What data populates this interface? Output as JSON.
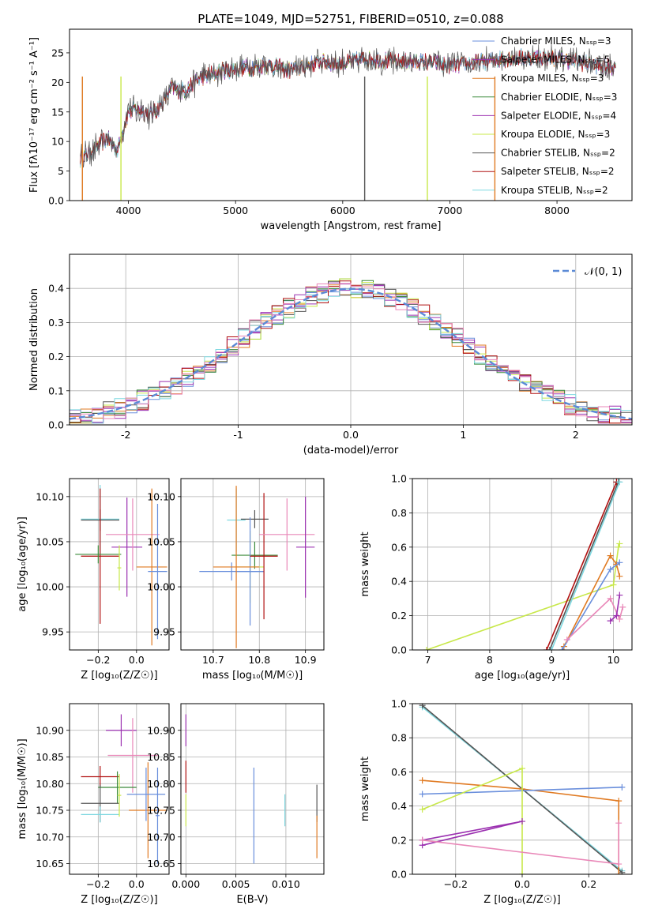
{
  "figure": {
    "title": "PLATE=1049, MJD=52751, FIBERID=0510, z=0.088"
  },
  "models": [
    {
      "label": "Chabrier MILES, N$_{SSP}$=3",
      "color": "#6a8fdc"
    },
    {
      "label": "Salpeter MILES, N$_{SSP}$=5",
      "color": "#9b30b0"
    },
    {
      "label": "Kroupa MILES, N$_{SSP}$=3",
      "color": "#e07a22"
    },
    {
      "label": "Chabrier ELODIE, N$_{SSP}$=3",
      "color": "#3a8a3a"
    },
    {
      "label": "Salpeter ELODIE, N$_{SSP}$=4",
      "color": "#9b30b0"
    },
    {
      "label": "Kroupa ELODIE, N$_{SSP}$=3",
      "color": "#c8e84a"
    },
    {
      "label": "Chabrier STELIB, N$_{SSP}$=2",
      "color": "#555555"
    },
    {
      "label": "Salpeter STELIB, N$_{SSP}$=2",
      "color": "#b01010"
    },
    {
      "label": "Kroupa STELIB, N$_{SSP}$=2",
      "color": "#7fd8e0"
    }
  ],
  "chart_data": [
    {
      "type": "line",
      "id": "spectrum",
      "xlabel": "wavelength [Angstrom, rest frame]",
      "ylabel": "Flux [f$_\\lambda$10$^{-17}$ erg cm$^{-2}$ s$^{-1}$ A$^{-1}$]",
      "xlim": [
        3450,
        8700
      ],
      "ylim": [
        0,
        29
      ],
      "xticks": [
        4000,
        5000,
        6000,
        7000,
        8000
      ],
      "yticks": [
        0,
        5,
        10,
        15,
        20,
        25
      ],
      "flux_profile": {
        "x": [
          3550,
          3700,
          3800,
          3900,
          3950,
          4000,
          4100,
          4200,
          4300,
          4400,
          4500,
          4700,
          4900,
          5100,
          5300,
          5500,
          5800,
          6000,
          6200,
          6500,
          6800,
          7000,
          7300,
          7500,
          7800,
          8000,
          8200,
          8500
        ],
        "y": [
          7,
          9,
          10.5,
          8.5,
          12,
          15,
          15.5,
          14.5,
          16,
          19,
          18.5,
          21,
          22,
          22.5,
          23,
          22,
          23.5,
          23.2,
          24,
          23.5,
          23.5,
          22.8,
          23.5,
          24,
          24.3,
          24,
          23.5,
          22.5
        ]
      },
      "grid": false,
      "legend_position": "right"
    },
    {
      "type": "line",
      "id": "residuals",
      "xlabel": "(data-model)/error",
      "ylabel": "Normed distribution",
      "xlim": [
        -2.5,
        2.5
      ],
      "ylim": [
        0,
        0.5
      ],
      "xticks": [
        -2,
        -1,
        0,
        1,
        2
      ],
      "yticks": [
        0.0,
        0.1,
        0.2,
        0.3,
        0.4
      ],
      "reference_label": "$\\mathcal{N}(0,1)$",
      "grid": true,
      "legend_position": "top-right"
    },
    {
      "type": "scatter",
      "id": "age-vs-Z",
      "xlabel": "Z [log$_{10}$($Z/Z_\\odot$)]",
      "ylabel": "age  [log$_{10}$($age/yr$)]",
      "xlim": [
        -0.35,
        0.17
      ],
      "ylim": [
        9.93,
        10.12
      ],
      "xticks": [
        -0.2,
        0.0
      ],
      "yticks": [
        9.95,
        10.0,
        10.05,
        10.1
      ],
      "grid": true,
      "errorbars": [
        {
          "x": -0.19,
          "xerr": 0.1,
          "y": 10.075,
          "yerr": 0.038,
          "color": "#7fd8e0"
        },
        {
          "x": -0.19,
          "xerr": 0.1,
          "y": 10.074,
          "yerr": 0.012,
          "color": "#555555"
        },
        {
          "x": -0.19,
          "xerr": 0.1,
          "y": 10.034,
          "yerr": 0.075,
          "color": "#b01010"
        },
        {
          "x": -0.05,
          "xerr": 0.08,
          "y": 10.044,
          "yerr": 0.055,
          "color": "#9b30b0"
        },
        {
          "x": -0.2,
          "xerr": 0.12,
          "y": 10.036,
          "yerr": 0.01,
          "color": "#3a8a3a"
        },
        {
          "x": -0.09,
          "xerr": 0.01,
          "y": 10.021,
          "yerr": 0.025,
          "color": "#c8e84a"
        },
        {
          "x": -0.02,
          "xerr": 0.14,
          "y": 10.058,
          "yerr": 0.04,
          "color": "#e987b8"
        },
        {
          "x": 0.08,
          "xerr": 0.08,
          "y": 10.022,
          "yerr": 0.087,
          "color": "#e07a22"
        },
        {
          "x": 0.11,
          "xerr": 0.05,
          "y": 10.017,
          "yerr": 0.075,
          "color": "#6a8fdc"
        }
      ]
    },
    {
      "type": "scatter",
      "id": "age-vs-mass",
      "xlabel": "mass [log$_{10}$($M/M_\\odot$)]",
      "ylabel": "",
      "xlim": [
        10.63,
        10.94
      ],
      "ylim": [
        9.93,
        10.12
      ],
      "xticks": [
        10.7,
        10.8,
        10.9
      ],
      "yticks": [
        9.95,
        10.0,
        10.05,
        10.1
      ],
      "grid": true,
      "errorbars": [
        {
          "x": 10.75,
          "xerr": 0.02,
          "y": 10.074,
          "yerr": 0.035,
          "color": "#7fd8e0"
        },
        {
          "x": 10.79,
          "xerr": 0.03,
          "y": 10.075,
          "yerr": 0.01,
          "color": "#555555"
        },
        {
          "x": 10.79,
          "xerr": 0.05,
          "y": 10.035,
          "yerr": 0.015,
          "color": "#3a8a3a"
        },
        {
          "x": 10.78,
          "xerr": 0.03,
          "y": 10.022,
          "yerr": 0.04,
          "color": "#c8e84a"
        },
        {
          "x": 10.74,
          "xerr": 0.07,
          "y": 10.017,
          "yerr": 0.01,
          "color": "#6a8fdc"
        },
        {
          "x": 10.78,
          "xerr": 0.03,
          "y": 10.017,
          "yerr": 0.06,
          "color": "#6a8fdc"
        },
        {
          "x": 10.75,
          "xerr": 0.05,
          "y": 10.022,
          "yerr": 0.09,
          "color": "#e07a22"
        },
        {
          "x": 10.81,
          "xerr": 0.03,
          "y": 10.034,
          "yerr": 0.07,
          "color": "#b01010"
        },
        {
          "x": 10.86,
          "xerr": 0.06,
          "y": 10.058,
          "yerr": 0.04,
          "color": "#e987b8"
        },
        {
          "x": 10.9,
          "xerr": 0.02,
          "y": 10.044,
          "yerr": 0.056,
          "color": "#9b30b0"
        }
      ]
    },
    {
      "type": "line",
      "id": "massweight-vs-age",
      "xlabel": "age  [log$_{10}$($age/yr$)]",
      "ylabel": "mass weight",
      "xlim": [
        6.75,
        10.3
      ],
      "ylim": [
        0,
        1.0
      ],
      "xticks": [
        7,
        8,
        9,
        10
      ],
      "yticks": [
        0.0,
        0.2,
        0.4,
        0.6,
        0.8,
        1.0
      ],
      "grid": true,
      "series": [
        {
          "color": "#c8e84a",
          "x": [
            6.98,
            10.0,
            10.08,
            10.1
          ],
          "y": [
            0.0,
            0.38,
            0.6,
            0.62
          ]
        },
        {
          "color": "#b01010",
          "x": [
            8.92,
            10.05
          ],
          "y": [
            0.0,
            0.98
          ]
        },
        {
          "color": "#555555",
          "x": [
            8.97,
            10.08
          ],
          "y": [
            0.0,
            0.98
          ]
        },
        {
          "color": "#7fd8e0",
          "x": [
            9.0,
            10.1
          ],
          "y": [
            0.0,
            0.98
          ]
        },
        {
          "color": "#e07a22",
          "x": [
            9.2,
            9.95,
            10.05,
            10.1
          ],
          "y": [
            0.02,
            0.55,
            0.5,
            0.43
          ]
        },
        {
          "color": "#6a8fdc",
          "x": [
            9.17,
            9.95,
            10.1
          ],
          "y": [
            0.0,
            0.47,
            0.51
          ]
        },
        {
          "color": "#e987b8",
          "x": [
            9.25,
            9.95,
            10.1,
            10.15
          ],
          "y": [
            0.06,
            0.3,
            0.18,
            0.25
          ]
        },
        {
          "color": "#9b30b0",
          "x": [
            9.95,
            10.05,
            10.1
          ],
          "y": [
            0.17,
            0.2,
            0.32
          ]
        }
      ]
    },
    {
      "type": "scatter",
      "id": "mass-vs-Z",
      "xlabel": "Z [log$_{10}$($Z/Z_\\odot$)]",
      "ylabel": "mass [log$_{10}$($M/M_\\odot$)]",
      "xlim": [
        -0.35,
        0.17
      ],
      "ylim": [
        10.63,
        10.95
      ],
      "xticks": [
        -0.2,
        0.0
      ],
      "yticks": [
        10.65,
        10.7,
        10.75,
        10.8,
        10.85,
        10.9
      ],
      "grid": true,
      "errorbars": [
        {
          "x": -0.08,
          "xerr": 0.08,
          "y": 10.9,
          "yerr": 0.03,
          "color": "#9b30b0"
        },
        {
          "x": -0.02,
          "xerr": 0.13,
          "y": 10.853,
          "yerr": 0.07,
          "color": "#e987b8"
        },
        {
          "x": -0.19,
          "xerr": 0.1,
          "y": 10.813,
          "yerr": 0.02,
          "color": "#b01010"
        },
        {
          "x": -0.1,
          "xerr": 0.1,
          "y": 10.793,
          "yerr": 0.03,
          "color": "#3a8a3a"
        },
        {
          "x": -0.19,
          "xerr": 0.1,
          "y": 10.763,
          "yerr": 0.035,
          "color": "#555555"
        },
        {
          "x": -0.19,
          "xerr": 0.1,
          "y": 10.742,
          "yerr": 0.015,
          "color": "#7fd8e0"
        },
        {
          "x": -0.09,
          "xerr": 0.01,
          "y": 10.778,
          "yerr": 0.04,
          "color": "#c8e84a"
        },
        {
          "x": 0.06,
          "xerr": 0.1,
          "y": 10.75,
          "yerr": 0.09,
          "color": "#e07a22"
        },
        {
          "x": 0.05,
          "xerr": 0.1,
          "y": 10.78,
          "yerr": 0.05,
          "color": "#6a8fdc"
        },
        {
          "x": 0.11,
          "xerr": 0.01,
          "y": 10.74,
          "yerr": 0.09,
          "color": "#6a8fdc"
        }
      ]
    },
    {
      "type": "scatter",
      "id": "mass-vs-EBV",
      "xlabel": "E(B-V)",
      "ylabel": "",
      "xlim": [
        -0.0005,
        0.0138
      ],
      "ylim": [
        10.63,
        10.95
      ],
      "xticks": [
        0.0,
        0.005,
        0.01
      ],
      "xtick_labels": [
        "0.000",
        "0.005",
        "0.010"
      ],
      "yticks": [
        10.65,
        10.7,
        10.75,
        10.8,
        10.85,
        10.9
      ],
      "grid": true,
      "errorbars": [
        {
          "x": 0.0,
          "xerr": 0.0,
          "y": 10.9,
          "yerr": 0.03,
          "color": "#9b30b0"
        },
        {
          "x": 0.0,
          "xerr": 0.0,
          "y": 10.813,
          "yerr": 0.03,
          "color": "#b01010"
        },
        {
          "x": 0.0,
          "xerr": 0.0,
          "y": 10.75,
          "yerr": 0.03,
          "color": "#c8e84a"
        },
        {
          "x": 0.0068,
          "xerr": 0.0,
          "y": 10.74,
          "yerr": 0.09,
          "color": "#6a8fdc"
        },
        {
          "x": 0.0099,
          "xerr": 0.0,
          "y": 10.75,
          "yerr": 0.03,
          "color": "#7fd8e0"
        },
        {
          "x": 0.0131,
          "xerr": 0.0,
          "y": 10.763,
          "yerr": 0.035,
          "color": "#555555"
        },
        {
          "x": 0.0131,
          "xerr": 0.0,
          "y": 10.7,
          "yerr": 0.04,
          "color": "#e07a22"
        }
      ]
    },
    {
      "type": "line",
      "id": "massweight-vs-Z",
      "xlabel": "Z [log$_{10}$($Z/Z_\\odot$)]",
      "ylabel": "mass weight",
      "xlim": [
        -0.33,
        0.33
      ],
      "ylim": [
        0,
        1.0
      ],
      "xticks": [
        -0.2,
        0.0,
        0.2
      ],
      "yticks": [
        0.0,
        0.2,
        0.4,
        0.6,
        0.8,
        1.0
      ],
      "grid": true,
      "series": [
        {
          "color": "#7fd8e0",
          "x": [
            -0.3,
            0.3
          ],
          "y": [
            0.98,
            0.02
          ]
        },
        {
          "color": "#555555",
          "x": [
            -0.3,
            0.3
          ],
          "y": [
            0.99,
            0.01
          ]
        },
        {
          "color": "#e07a22",
          "x": [
            -0.3,
            0.0,
            0.29,
            0.29
          ],
          "y": [
            0.55,
            0.5,
            0.43,
            0.0
          ]
        },
        {
          "color": "#6a8fdc",
          "x": [
            -0.3,
            0.0,
            0.3
          ],
          "y": [
            0.47,
            0.49,
            0.51
          ]
        },
        {
          "color": "#c8e84a",
          "x": [
            -0.3,
            0.0,
            0.0
          ],
          "y": [
            0.38,
            0.62,
            0.0
          ]
        },
        {
          "color": "#9b30b0",
          "x": [
            -0.3,
            0.0,
            -0.3
          ],
          "y": [
            0.17,
            0.31,
            0.2
          ]
        },
        {
          "color": "#e987b8",
          "x": [
            -0.3,
            0.29,
            0.29
          ],
          "y": [
            0.2,
            0.06,
            0.3
          ]
        }
      ]
    }
  ]
}
